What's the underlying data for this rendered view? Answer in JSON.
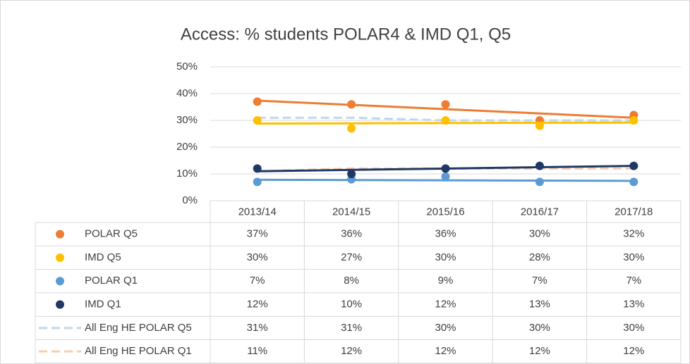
{
  "chart_data": {
    "type": "line",
    "title": "Access: % students POLAR4 & IMD Q1, Q5",
    "categories": [
      "2013/14",
      "2014/15",
      "2015/16",
      "2016/17",
      "2017/18"
    ],
    "ylim": [
      0,
      50
    ],
    "yticks": [
      {
        "value": 0,
        "label": "0%"
      },
      {
        "value": 10,
        "label": "10%"
      },
      {
        "value": 20,
        "label": "20%"
      },
      {
        "value": 30,
        "label": "30%"
      },
      {
        "value": 40,
        "label": "40%"
      },
      {
        "value": 50,
        "label": "50%"
      }
    ],
    "grid": true,
    "series": [
      {
        "name": "POLAR Q5",
        "color": "#ed7d31",
        "style": "markers",
        "trendline": true,
        "values": [
          37,
          36,
          36,
          30,
          32
        ],
        "value_labels": [
          "37%",
          "36%",
          "36%",
          "30%",
          "32%"
        ]
      },
      {
        "name": "IMD Q5",
        "color": "#ffc000",
        "style": "markers",
        "trendline": true,
        "values": [
          30,
          27,
          30,
          28,
          30
        ],
        "value_labels": [
          "30%",
          "27%",
          "30%",
          "28%",
          "30%"
        ]
      },
      {
        "name": "POLAR Q1",
        "color": "#5b9bd5",
        "style": "markers",
        "trendline": true,
        "values": [
          7,
          8,
          9,
          7,
          7
        ],
        "value_labels": [
          "7%",
          "8%",
          "9%",
          "7%",
          "7%"
        ]
      },
      {
        "name": "IMD Q1",
        "color": "#203864",
        "style": "markers",
        "trendline": true,
        "values": [
          12,
          10,
          12,
          13,
          13
        ],
        "value_labels": [
          "12%",
          "10%",
          "12%",
          "13%",
          "13%"
        ]
      },
      {
        "name": "All Eng HE POLAR Q5",
        "color": "#bdd7ee",
        "style": "dashed",
        "values": [
          31,
          31,
          30,
          30,
          30
        ],
        "value_labels": [
          "31%",
          "31%",
          "30%",
          "30%",
          "30%"
        ]
      },
      {
        "name": "All Eng HE POLAR Q1",
        "color": "#f8cbad",
        "style": "dashed",
        "values": [
          11,
          12,
          12,
          12,
          12
        ],
        "value_labels": [
          "11%",
          "12%",
          "12%",
          "12%",
          "12%"
        ]
      }
    ]
  }
}
